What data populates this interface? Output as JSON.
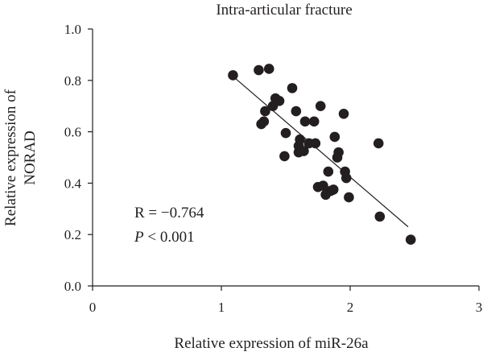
{
  "chart_data": {
    "type": "scatter",
    "title": "Intra-articular fracture",
    "xlabel": "Relative expression of miR-26a",
    "ylabel": "Relative expression of NORAD",
    "ylabel_lines": [
      "Relative expression of",
      "NORAD"
    ],
    "xlim": [
      0,
      3
    ],
    "ylim": [
      0,
      1.0
    ],
    "x_ticks": [
      0,
      1,
      2,
      3
    ],
    "x_tick_labels": [
      "0",
      "1",
      "2",
      "3"
    ],
    "y_ticks": [
      0,
      0.2,
      0.4,
      0.6,
      0.8,
      1.0
    ],
    "y_tick_labels": [
      "0.0",
      "0.2",
      "0.4",
      "0.6",
      "0.8",
      "1.0"
    ],
    "grid": false,
    "annotations": {
      "r_text": "R = −0.764",
      "p_symbol": "P",
      "p_rest": " < 0.001"
    },
    "trendline": {
      "x": [
        1.08,
        2.45
      ],
      "y": [
        0.82,
        0.23
      ]
    },
    "points": [
      {
        "x": 1.09,
        "y": 0.82
      },
      {
        "x": 1.29,
        "y": 0.84
      },
      {
        "x": 1.37,
        "y": 0.845
      },
      {
        "x": 1.31,
        "y": 0.63
      },
      {
        "x": 1.33,
        "y": 0.64
      },
      {
        "x": 1.34,
        "y": 0.68
      },
      {
        "x": 1.4,
        "y": 0.7
      },
      {
        "x": 1.42,
        "y": 0.73
      },
      {
        "x": 1.45,
        "y": 0.72
      },
      {
        "x": 1.49,
        "y": 0.505
      },
      {
        "x": 1.5,
        "y": 0.595
      },
      {
        "x": 1.55,
        "y": 0.77
      },
      {
        "x": 1.58,
        "y": 0.68
      },
      {
        "x": 1.6,
        "y": 0.52
      },
      {
        "x": 1.6,
        "y": 0.545
      },
      {
        "x": 1.61,
        "y": 0.57
      },
      {
        "x": 1.64,
        "y": 0.525
      },
      {
        "x": 1.65,
        "y": 0.64
      },
      {
        "x": 1.68,
        "y": 0.555
      },
      {
        "x": 1.72,
        "y": 0.64
      },
      {
        "x": 1.73,
        "y": 0.555
      },
      {
        "x": 1.75,
        "y": 0.385
      },
      {
        "x": 1.77,
        "y": 0.7
      },
      {
        "x": 1.79,
        "y": 0.39
      },
      {
        "x": 1.81,
        "y": 0.355
      },
      {
        "x": 1.83,
        "y": 0.445
      },
      {
        "x": 1.85,
        "y": 0.37
      },
      {
        "x": 1.87,
        "y": 0.375
      },
      {
        "x": 1.88,
        "y": 0.58
      },
      {
        "x": 1.91,
        "y": 0.52
      },
      {
        "x": 1.9,
        "y": 0.5
      },
      {
        "x": 1.95,
        "y": 0.67
      },
      {
        "x": 1.96,
        "y": 0.445
      },
      {
        "x": 1.97,
        "y": 0.42
      },
      {
        "x": 1.99,
        "y": 0.345
      },
      {
        "x": 2.22,
        "y": 0.555
      },
      {
        "x": 2.23,
        "y": 0.27
      },
      {
        "x": 2.47,
        "y": 0.18
      }
    ]
  }
}
